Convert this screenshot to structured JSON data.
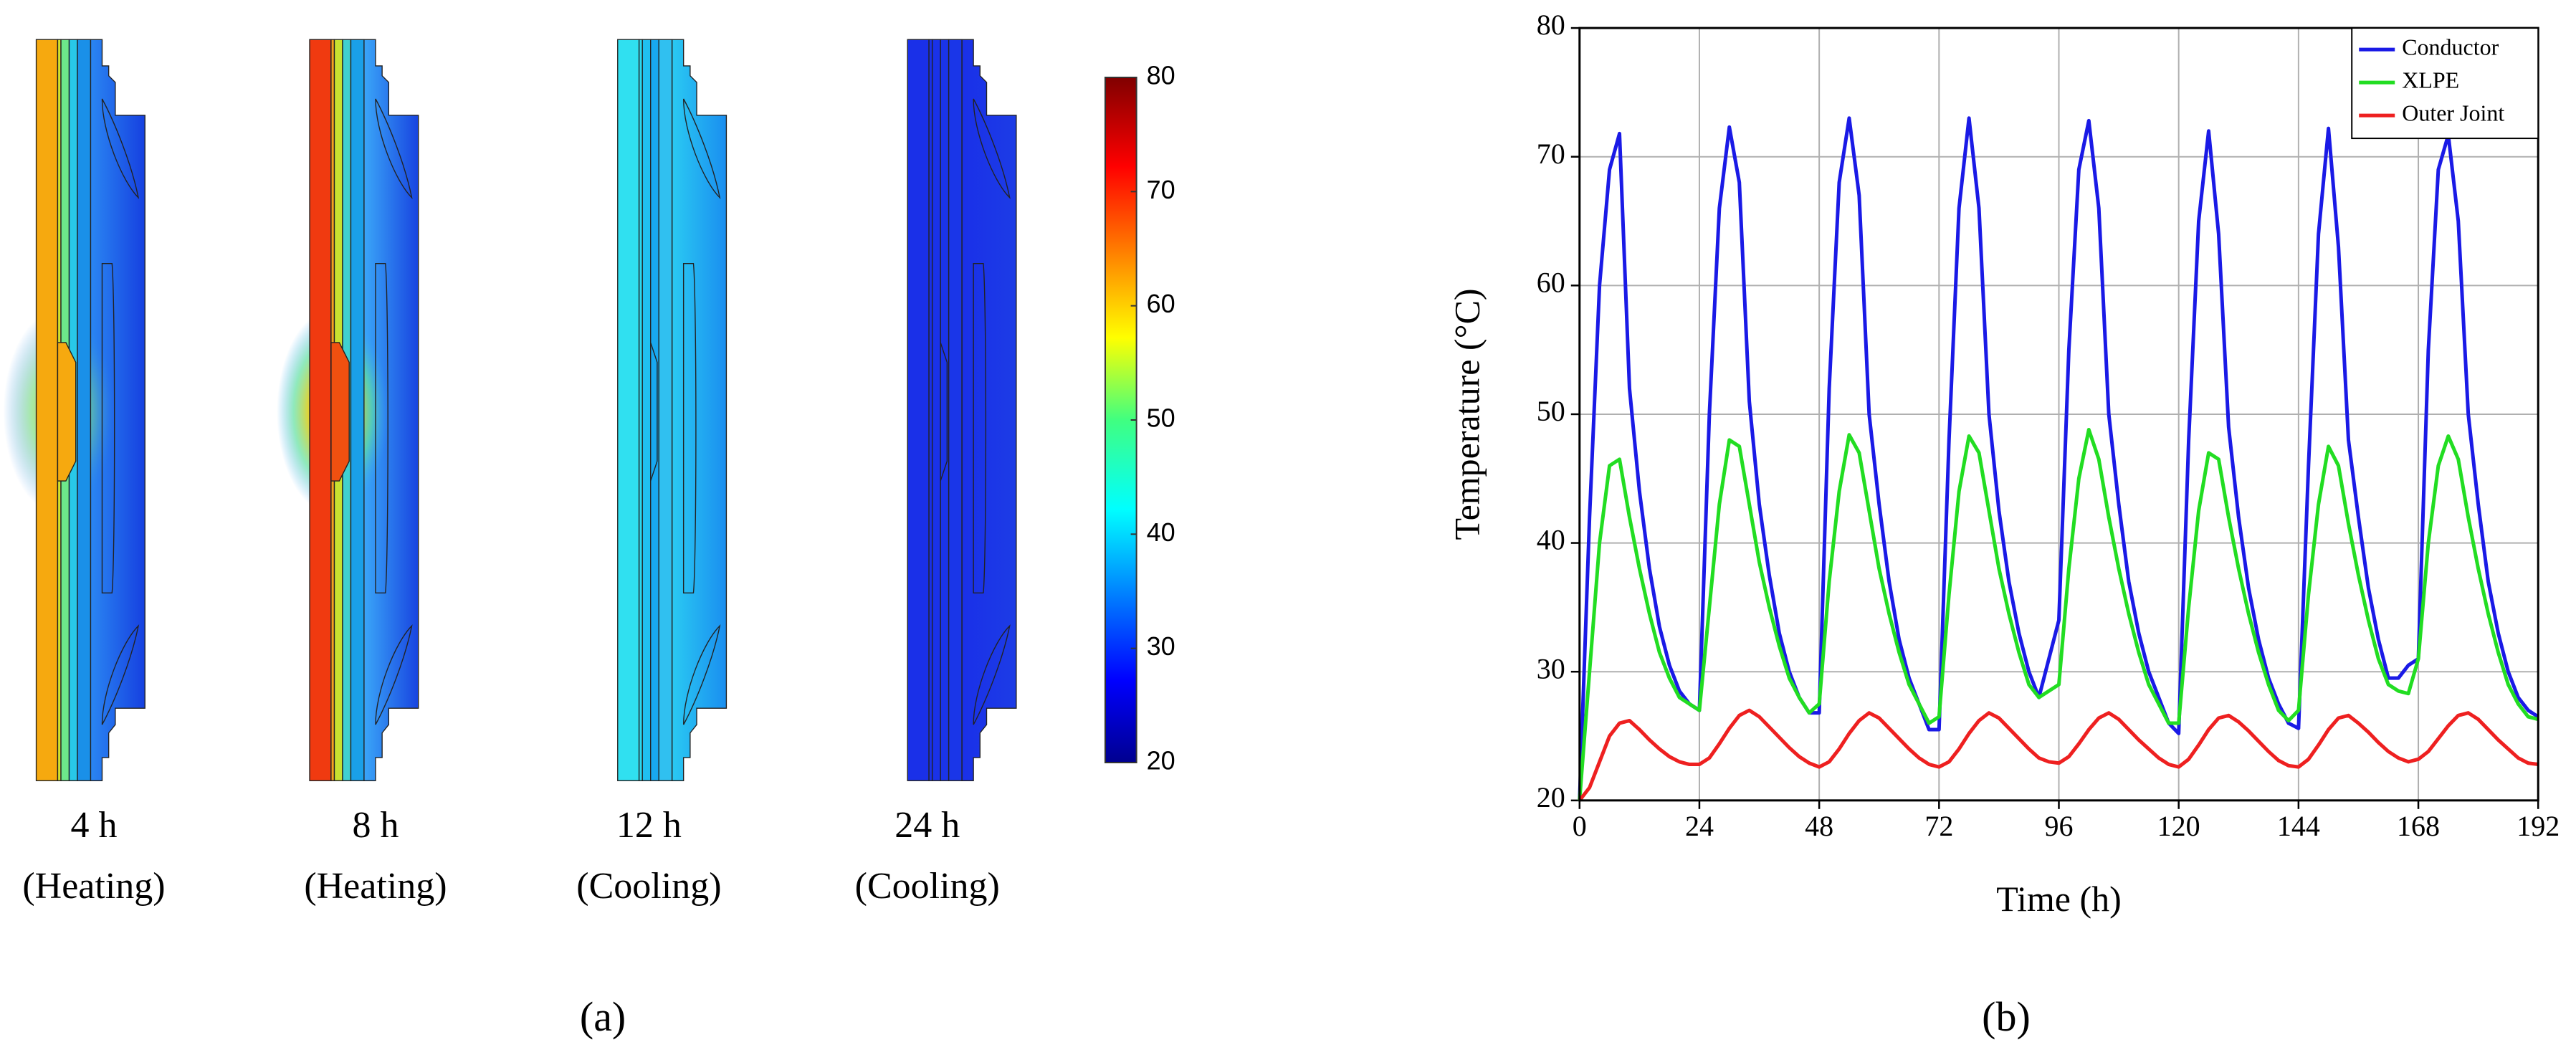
{
  "panel_a": {
    "labels": [
      {
        "time": "4 h",
        "phase": "(Heating)"
      },
      {
        "time": "8 h",
        "phase": "(Heating)"
      },
      {
        "time": "12 h",
        "phase": "(Cooling)"
      },
      {
        "time": "24 h",
        "phase": "(Cooling)"
      }
    ],
    "panel_label": "(a)",
    "colorbar": {
      "lim": [
        20,
        80
      ],
      "ticks": [
        20,
        30,
        40,
        50,
        60,
        70,
        80
      ]
    }
  },
  "chart_data": {
    "type": "line",
    "panel_label": "(b)",
    "xlabel": "Time (h)",
    "ylabel": "Temperature (°C)",
    "xlim": [
      0,
      192
    ],
    "xticks": [
      0,
      24,
      48,
      72,
      96,
      120,
      144,
      168,
      192
    ],
    "ylim": [
      20,
      80
    ],
    "yticks": [
      20,
      30,
      40,
      50,
      60,
      70,
      80
    ],
    "grid": true,
    "legend": "upper right",
    "x": [
      0,
      2,
      4,
      6,
      8,
      10,
      12,
      14,
      16,
      18,
      20,
      22,
      24,
      26,
      28,
      30,
      32,
      34,
      36,
      38,
      40,
      42,
      44,
      46,
      48,
      50,
      52,
      54,
      56,
      58,
      60,
      62,
      64,
      66,
      68,
      70,
      72,
      74,
      76,
      78,
      80,
      82,
      84,
      86,
      88,
      90,
      92,
      94,
      96,
      98,
      100,
      102,
      104,
      106,
      108,
      110,
      112,
      114,
      116,
      118,
      120,
      122,
      124,
      126,
      128,
      130,
      132,
      134,
      136,
      138,
      140,
      142,
      144,
      146,
      148,
      150,
      152,
      154,
      156,
      158,
      160,
      162,
      164,
      166,
      168,
      170,
      172,
      174,
      176,
      178,
      180,
      182,
      184,
      186,
      188,
      190,
      192
    ],
    "series": [
      {
        "name": "Conductor",
        "color": "#1a1ae6",
        "values": [
          20,
          42,
          60,
          69,
          71.8,
          52,
          44,
          38,
          33.5,
          30.5,
          28.5,
          27.5,
          27,
          50,
          66,
          72.3,
          68,
          51,
          43,
          37.5,
          33,
          30,
          28,
          26.8,
          26.8,
          52,
          68,
          73,
          67,
          50,
          43,
          37,
          32.5,
          29.5,
          27.5,
          25.5,
          25.5,
          48,
          66,
          73,
          66,
          50,
          42.5,
          37,
          33,
          30,
          28,
          31,
          34,
          55,
          69,
          72.8,
          66,
          50,
          43,
          37,
          33,
          30,
          28,
          26,
          25.2,
          48,
          65,
          72,
          64,
          49,
          42,
          36.5,
          32.5,
          29.5,
          27.5,
          26,
          25.6,
          46,
          64,
          72.2,
          63,
          48,
          42,
          36.5,
          32.5,
          29.5,
          29.5,
          30.5,
          31,
          55,
          69,
          71.7,
          65,
          50,
          43,
          37,
          33,
          30,
          28,
          27,
          26.5
        ]
      },
      {
        "name": "XLPE",
        "color": "#22dd22",
        "values": [
          20,
          30,
          40,
          46,
          46.5,
          42,
          38,
          34.5,
          31.5,
          29.5,
          28,
          27.5,
          27,
          35,
          43,
          48,
          47.5,
          43,
          38.5,
          35,
          32,
          29.5,
          28,
          26.8,
          27.5,
          37,
          44,
          48.4,
          47,
          42.5,
          38,
          34.5,
          31.5,
          29,
          27.5,
          26,
          26.5,
          36,
          44,
          48.3,
          47,
          42.5,
          38,
          34.5,
          31.5,
          29,
          28,
          28.5,
          29,
          38,
          45,
          48.8,
          46.5,
          42,
          38,
          34.5,
          31.5,
          29,
          27.5,
          26,
          26,
          35,
          42.5,
          47,
          46.5,
          42,
          38,
          34.5,
          31.5,
          29,
          27,
          26.2,
          27,
          36,
          43,
          47.5,
          46,
          41.5,
          37.5,
          34,
          31,
          29,
          28.5,
          28.3,
          31,
          40,
          46,
          48.3,
          46.5,
          42,
          38,
          34.5,
          31.5,
          29,
          27.5,
          26.5,
          26.3
        ]
      },
      {
        "name": "Outer Joint",
        "color": "#ee2020",
        "values": [
          20,
          21,
          23,
          25,
          26,
          26.2,
          25.5,
          24.7,
          24,
          23.4,
          23,
          22.8,
          22.8,
          23.3,
          24.4,
          25.6,
          26.6,
          27,
          26.5,
          25.7,
          24.9,
          24.1,
          23.4,
          22.9,
          22.6,
          23,
          24,
          25.2,
          26.2,
          26.8,
          26.4,
          25.6,
          24.8,
          24,
          23.3,
          22.8,
          22.6,
          23,
          24,
          25.2,
          26.2,
          26.8,
          26.4,
          25.6,
          24.8,
          24,
          23.3,
          23,
          22.9,
          23.4,
          24.4,
          25.5,
          26.4,
          26.8,
          26.3,
          25.5,
          24.7,
          24,
          23.3,
          22.8,
          22.6,
          23.2,
          24.3,
          25.5,
          26.4,
          26.6,
          26.1,
          25.4,
          24.6,
          23.8,
          23.1,
          22.7,
          22.6,
          23.2,
          24.3,
          25.5,
          26.4,
          26.6,
          26,
          25.3,
          24.5,
          23.8,
          23.3,
          23,
          23.2,
          23.8,
          24.8,
          25.8,
          26.6,
          26.8,
          26.3,
          25.5,
          24.7,
          24,
          23.3,
          22.9,
          22.8
        ]
      }
    ]
  }
}
